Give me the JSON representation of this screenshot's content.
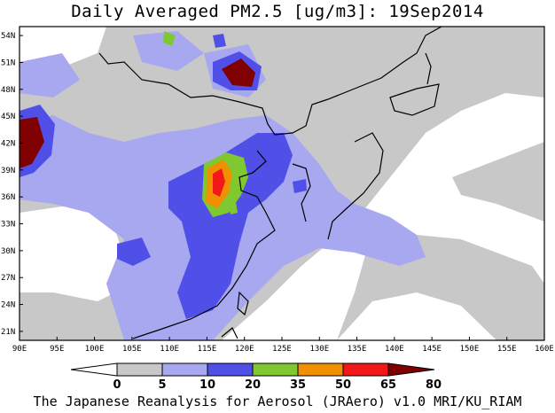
{
  "title": "Daily Averaged PM2.5 [ug/m3]: 19Sep2014",
  "credit": "The Japanese Reanalysis for Aerosol (JRAero) v1.0 MRI/KU_RIAM",
  "map": {
    "lon_range": [
      90,
      160
    ],
    "lat_range": [
      20,
      55
    ],
    "lon_labels": [
      "90E",
      "95E",
      "100E",
      "105E",
      "110E",
      "115E",
      "120E",
      "125E",
      "130E",
      "135E",
      "140E",
      "145E",
      "150E",
      "155E",
      "160E"
    ],
    "lat_labels": [
      "21N",
      "24N",
      "27N",
      "30N",
      "33N",
      "36N",
      "39N",
      "42N",
      "45N",
      "48N",
      "51N",
      "54N"
    ]
  },
  "colorbar": {
    "labels": [
      "0",
      "5",
      "10",
      "20",
      "35",
      "50",
      "65",
      "80"
    ],
    "colors": [
      "#ffffff",
      "#c8c8c8",
      "#a8a8f0",
      "#5050e8",
      "#80c830",
      "#f09000",
      "#f01818",
      "#800000"
    ]
  }
}
